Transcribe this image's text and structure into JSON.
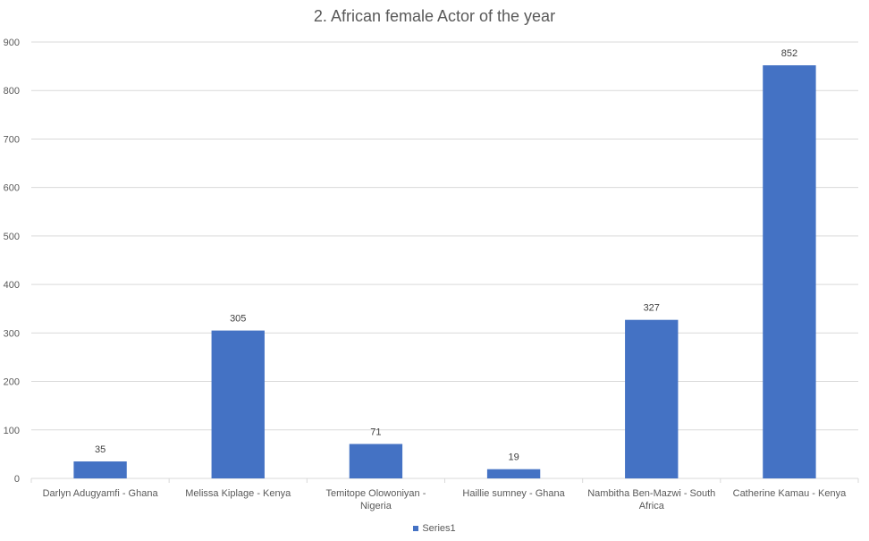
{
  "chart_data": {
    "type": "bar",
    "title": "2. African female Actor of the year",
    "categories": [
      "Darlyn Adugyamfi - Ghana",
      "Melissa Kiplage - Kenya",
      "Temitope Olowoniyan - Nigeria",
      "Haillie sumney - Ghana",
      "Nambitha Ben-Mazwi - South Africa",
      "Catherine Kamau - Kenya"
    ],
    "series": [
      {
        "name": "Series1",
        "values": [
          35,
          305,
          71,
          19,
          327,
          852
        ]
      }
    ],
    "ylim": [
      0,
      900
    ],
    "yticks": [
      0,
      100,
      200,
      300,
      400,
      500,
      600,
      700,
      800,
      900
    ],
    "grid": true,
    "legend_position": "bottom",
    "colors": {
      "bar": "#4472C4",
      "grid": "#D9D9D9",
      "text": "#595959"
    }
  }
}
